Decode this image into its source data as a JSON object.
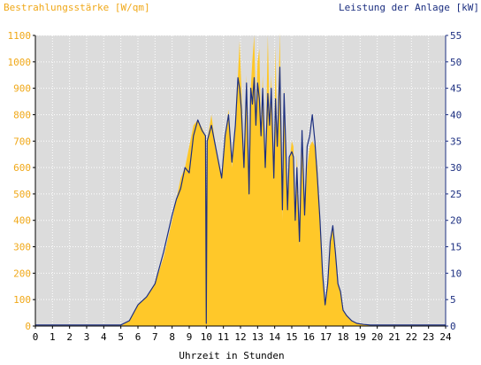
{
  "chart_data": {
    "type": "area",
    "ylabel_left": "Bestrahlungsstärke [W/qm]",
    "ylabel_right": "Leistung der Anlage [kW]",
    "xlabel": "Uhrzeit in Stunden",
    "xlim": [
      0,
      24
    ],
    "ylim_left": [
      0,
      1100
    ],
    "ylim_right": [
      0,
      55
    ],
    "x_ticks": [
      "0",
      "1",
      "2",
      "3",
      "4",
      "5",
      "6",
      "7",
      "8",
      "9",
      "10",
      "11",
      "12",
      "13",
      "14",
      "15",
      "16",
      "17",
      "18",
      "19",
      "20",
      "21",
      "22",
      "23",
      "24"
    ],
    "y_ticks_left": [
      "0",
      "100",
      "200",
      "300",
      "400",
      "500",
      "600",
      "700",
      "800",
      "900",
      "1000",
      "1100"
    ],
    "y_ticks_right": [
      "0",
      "5",
      "10",
      "15",
      "20",
      "25",
      "30",
      "35",
      "40",
      "45",
      "50",
      "55"
    ],
    "grid": true,
    "colors": {
      "irradiance": "#ffc829",
      "power": "#1c2f80",
      "plot_background": "#dcdcdc",
      "grid": "#ffffff",
      "left_axis_text": "#f0a818",
      "right_axis_text": "#1c2f80"
    },
    "series": [
      {
        "name": "Bestrahlungsstärke [W/qm]",
        "axis": "left",
        "x": [
          0,
          5,
          5.5,
          6,
          6.5,
          7,
          7.5,
          8,
          8.25,
          8.5,
          8.75,
          9,
          9.25,
          9.5,
          9.75,
          9.95,
          10.0,
          10.05,
          10.3,
          10.6,
          10.9,
          11.1,
          11.3,
          11.5,
          11.7,
          11.85,
          11.95,
          12.05,
          12.2,
          12.35,
          12.5,
          12.6,
          12.7,
          12.8,
          12.9,
          13.0,
          13.1,
          13.2,
          13.3,
          13.45,
          13.6,
          13.7,
          13.8,
          13.95,
          14.05,
          14.15,
          14.3,
          14.45,
          14.55,
          14.65,
          14.75,
          14.85,
          15.0,
          15.1,
          15.2,
          15.3,
          15.45,
          15.6,
          15.75,
          15.9,
          16.05,
          16.2,
          16.35,
          16.5,
          16.65,
          16.8,
          16.95,
          17.1,
          17.25,
          17.4,
          17.55,
          17.7,
          17.85,
          18.0,
          18.2,
          18.5,
          18.8,
          19.2,
          19.6,
          20.0,
          24
        ],
        "values": [
          0,
          0,
          20,
          80,
          110,
          160,
          260,
          400,
          480,
          560,
          600,
          680,
          760,
          780,
          750,
          720,
          30,
          700,
          800,
          650,
          560,
          720,
          820,
          600,
          750,
          950,
          1080,
          900,
          600,
          950,
          480,
          900,
          1010,
          1100,
          800,
          1000,
          1050,
          750,
          950,
          600,
          1100,
          800,
          950,
          550,
          1060,
          700,
          1110,
          400,
          900,
          700,
          450,
          620,
          700,
          680,
          400,
          650,
          300,
          700,
          420,
          600,
          680,
          700,
          680,
          600,
          400,
          200,
          80,
          150,
          300,
          380,
          280,
          160,
          130,
          60,
          40,
          20,
          10,
          5,
          2,
          0,
          0
        ]
      },
      {
        "name": "Leistung der Anlage [kW]",
        "axis": "right",
        "x": [
          0,
          5,
          5.5,
          6,
          6.5,
          7,
          7.5,
          8,
          8.25,
          8.5,
          8.75,
          9,
          9.25,
          9.5,
          9.75,
          9.95,
          10.0,
          10.05,
          10.3,
          10.6,
          10.9,
          11.1,
          11.3,
          11.5,
          11.7,
          11.85,
          11.95,
          12.05,
          12.2,
          12.35,
          12.5,
          12.6,
          12.7,
          12.8,
          12.9,
          13.0,
          13.1,
          13.2,
          13.3,
          13.45,
          13.6,
          13.7,
          13.8,
          13.95,
          14.05,
          14.15,
          14.3,
          14.45,
          14.55,
          14.65,
          14.75,
          14.85,
          15.0,
          15.1,
          15.2,
          15.3,
          15.45,
          15.6,
          15.75,
          15.9,
          16.05,
          16.2,
          16.35,
          16.5,
          16.65,
          16.8,
          16.95,
          17.1,
          17.25,
          17.4,
          17.55,
          17.7,
          17.85,
          18.0,
          18.2,
          18.5,
          18.8,
          19.2,
          19.6,
          20.0,
          24
        ],
        "values": [
          0.2,
          0.2,
          1.0,
          4.0,
          5.5,
          8.0,
          14.0,
          21.0,
          24.0,
          26.0,
          30.0,
          29.0,
          36.0,
          39.0,
          37.0,
          36.0,
          0.5,
          35.0,
          38.0,
          33.0,
          28.0,
          36.0,
          40.0,
          31.0,
          38.0,
          47.0,
          45.0,
          41.0,
          30.0,
          46.0,
          25.0,
          45.0,
          42.0,
          47.0,
          38.0,
          46.0,
          43.0,
          36.0,
          45.0,
          30.0,
          44.0,
          38.0,
          45.0,
          28.0,
          43.0,
          34.0,
          49.0,
          22.0,
          44.0,
          34.0,
          22.0,
          32.0,
          33.0,
          32.0,
          20.0,
          30.0,
          16.0,
          37.0,
          21.0,
          34.0,
          36.0,
          40.0,
          35.0,
          28.0,
          20.0,
          10.0,
          4.0,
          8.0,
          16.0,
          19.0,
          14.0,
          8.0,
          6.5,
          3.0,
          2.0,
          1.0,
          0.5,
          0.3,
          0.2,
          0.2,
          0.2
        ]
      }
    ]
  }
}
